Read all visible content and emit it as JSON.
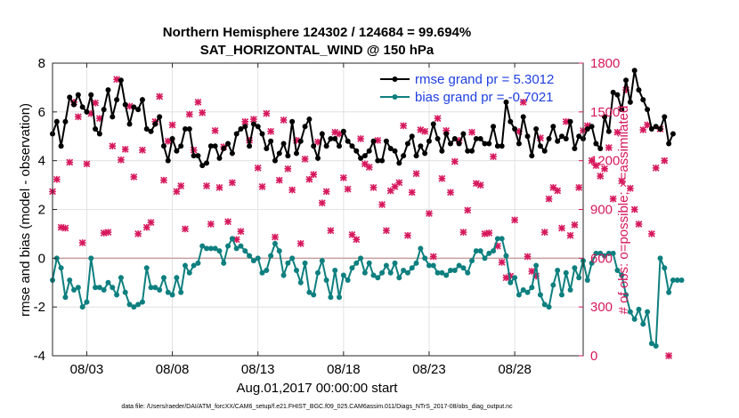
{
  "chart_data": {
    "type": "line",
    "title": "Northern Hemisphere 124302 / 124684 = 99.694%",
    "subtitle": "SAT_HORIZONTAL_WIND @ 150 hPa",
    "xlabel": "Aug.01,2017 00:00:00 start",
    "ylabel_left": "rmse and bias (model - observation)",
    "ylabel_right": "# of obs: o=possible; ×=assimilated",
    "footer": "data file: /Users/raeder/DAI/ATM_forcXX/CAM6_setup/f.e21.FHIST_BGC.f09_025.CAM6assim.011/Diags_NTrS_2017-08/obs_diag_output.nc",
    "xlim": [
      1.0,
      32.0
    ],
    "ylim_left": [
      -4,
      8
    ],
    "ylim_right": [
      0,
      1800
    ],
    "x_ticks": [
      3,
      8,
      13,
      18,
      23,
      28
    ],
    "x_tick_labels": [
      "08/03",
      "08/08",
      "08/13",
      "08/18",
      "08/23",
      "08/28"
    ],
    "y_ticks_left": [
      -4,
      -2,
      0,
      2,
      4,
      6,
      8
    ],
    "y_tick_labels_left": [
      "-4",
      "-2",
      "0",
      "2",
      "4",
      "6",
      "8"
    ],
    "y_ticks_right": [
      0,
      300,
      600,
      900,
      1200,
      1500,
      1800
    ],
    "y_tick_labels_right": [
      "0",
      "300",
      "600",
      "900",
      "1200",
      "1500",
      "1800"
    ],
    "grid": true,
    "legend_position": "top-right",
    "colors": {
      "rmse": "#000000",
      "bias": "#0e7f7f",
      "obs": "#d6185c",
      "zero_line": "#c8a0a0",
      "grid": "#dcdcdc"
    },
    "series": [
      {
        "name": "rmse grand pr = 5.3012",
        "x_start": 1.0,
        "x_step": 0.25,
        "values": [
          5.1,
          5.6,
          4.6,
          5.6,
          6.6,
          6.3,
          6.7,
          6.2,
          6.0,
          6.7,
          5.3,
          5.1,
          6.1,
          6.9,
          5.8,
          6.5,
          7.3,
          6.3,
          5.5,
          6.2,
          6.1,
          6.5,
          5.3,
          5.2,
          5.5,
          5.8,
          4.6,
          4.0,
          4.9,
          4.4,
          4.6,
          5.3,
          5.3,
          4.2,
          4.2,
          3.8,
          3.9,
          4.6,
          4.6,
          4.1,
          4.5,
          4.7,
          4.3,
          5.1,
          5.3,
          5.4,
          4.6,
          5.5,
          5.4,
          5.1,
          4.5,
          4.8,
          4.0,
          4.3,
          4.7,
          4.2,
          5.6,
          4.3,
          4.8,
          5.4,
          5.7,
          4.6,
          4.1,
          5.1,
          4.6,
          4.9,
          4.9,
          4.6,
          5.2,
          4.8,
          4.6,
          4.4,
          4.1,
          4.2,
          4.4,
          4.8,
          4.0,
          4.0,
          4.8,
          4.5,
          4.4,
          3.9,
          4.2,
          4.7,
          5.0,
          4.2,
          4.6,
          4.3,
          4.8,
          5.5,
          4.9,
          4.4,
          5.1,
          4.7,
          4.9,
          4.7,
          5.1,
          4.4,
          4.4,
          4.9,
          4.9,
          4.7,
          4.7,
          5.4,
          4.6,
          4.6,
          6.4,
          5.6,
          5.3,
          4.7,
          5.8,
          5.0,
          4.2,
          5.3,
          4.6,
          4.4,
          4.9,
          5.4,
          4.8,
          5.0,
          4.9,
          5.6,
          4.5,
          5.0,
          4.9,
          5.3,
          5.4,
          4.7,
          4.5,
          5.8,
          5.2,
          6.8,
          6.7,
          6.1,
          7.3,
          6.4,
          7.7,
          6.9,
          6.5,
          6.1,
          5.3,
          5.4,
          5.3,
          5.8,
          4.7,
          5.1
        ]
      },
      {
        "name": "bias grand pr = -0.7021",
        "x_start": 1.0,
        "x_step": 0.25,
        "values": [
          -0.9,
          0.0,
          -0.4,
          -1.6,
          -0.9,
          -1.3,
          -1.2,
          -2.0,
          -1.8,
          0.0,
          -1.2,
          -1.2,
          -1.3,
          -1.0,
          -1.2,
          -1.5,
          -0.8,
          -1.4,
          -1.9,
          -2.0,
          -1.9,
          -1.8,
          -0.4,
          -1.2,
          -1.2,
          -1.3,
          -0.8,
          -1.4,
          -1.5,
          -0.8,
          -1.4,
          -0.3,
          -0.6,
          -0.3,
          -0.2,
          0.5,
          0.4,
          0.4,
          0.4,
          0.3,
          -0.2,
          0.5,
          0.8,
          0.4,
          0.5,
          0.3,
          0.1,
          -0.1,
          0.0,
          -0.6,
          -0.5,
          0.1,
          0.6,
          0.3,
          -0.7,
          -0.2,
          0.0,
          -0.5,
          -1.0,
          -0.2,
          -1.4,
          -1.5,
          -0.6,
          -0.1,
          -0.9,
          -1.6,
          -0.5,
          -1.6,
          -0.7,
          -0.9,
          -0.4,
          -0.2,
          0.0,
          -0.6,
          -0.2,
          -0.7,
          -0.8,
          -0.6,
          -0.3,
          -0.6,
          -0.2,
          -0.8,
          -0.5,
          -0.6,
          -0.4,
          -0.2,
          0.4,
          0.0,
          -0.3,
          -0.3,
          -0.6,
          -0.6,
          -0.7,
          -0.5,
          -0.5,
          -0.3,
          -0.4,
          -0.6,
          -0.1,
          0.3,
          0.3,
          0.0,
          0.2,
          0.3,
          0.8,
          0.8,
          0.1,
          -1.0,
          -0.8,
          -1.5,
          -1.3,
          -1.4,
          -1.2,
          -0.3,
          -1.5,
          -1.9,
          -2.0,
          -1.1,
          -0.5,
          -1.5,
          -0.6,
          -1.3,
          -0.4,
          -0.8,
          -0.1,
          -0.9,
          -0.2,
          0.2,
          0.2,
          0.1,
          0.2,
          0.2,
          -0.5,
          -0.7,
          -1.5,
          -2.2,
          -2.5,
          -2.1,
          -2.7,
          -2.2,
          -3.5,
          -3.6,
          0.0,
          -0.4,
          -1.4,
          -0.9,
          -0.9,
          -0.9
        ]
      },
      {
        "name": "",
        "type": "scatter",
        "axis": "right",
        "x_start": 1.0,
        "x_step": 0.25,
        "values": [
          1010,
          1085,
          790,
          785,
          1190,
          1560,
          1470,
          695,
          1180,
          1490,
          1555,
          1460,
          755,
          760,
          1290,
          1700,
          1205,
          1270,
          1535,
          1100,
          750,
          1265,
          790,
          820,
          1440,
          1595,
          1080,
          1320,
          1420,
          1010,
          1045,
          780,
          1485,
          1265,
          1560,
          1495,
          1045,
          810,
          1385,
          1035,
          1285,
          825,
          1065,
          715,
          765,
          1440,
          1325,
          1455,
          1155,
          1040,
          1490,
          1380,
          730,
          1080,
          1450,
          1150,
          1020,
          1325,
          690,
          1210,
          1085,
          1115,
          1315,
          940,
          1010,
          770,
          1375,
          1365,
          1095,
          1025,
          745,
          715,
          1335,
          1180,
          1160,
          1035,
          1325,
          930,
          770,
          1015,
          1040,
          1065,
          1415,
          740,
          1005,
          1120,
          1390,
          1380,
          875,
          610,
          1460,
          1090,
          1385,
          1005,
          1195,
          1325,
          760,
          895,
          1375,
          1060,
          1050,
          750,
          755,
          1225,
          675,
          575,
          480,
          490,
          835,
          1380,
          1560,
          610,
          520,
          490,
          1340,
          760,
          965,
          1035,
          1015,
          785,
          1440,
          740,
          805,
          1035,
          1385,
          1415,
          1200,
          1170,
          1105,
          1150,
          1280,
          965,
          1375,
          1075,
          1635,
          1030,
          900,
          810,
          1390,
          1420,
          750,
          1155,
          1395,
          1200,
          0
        ]
      }
    ]
  }
}
